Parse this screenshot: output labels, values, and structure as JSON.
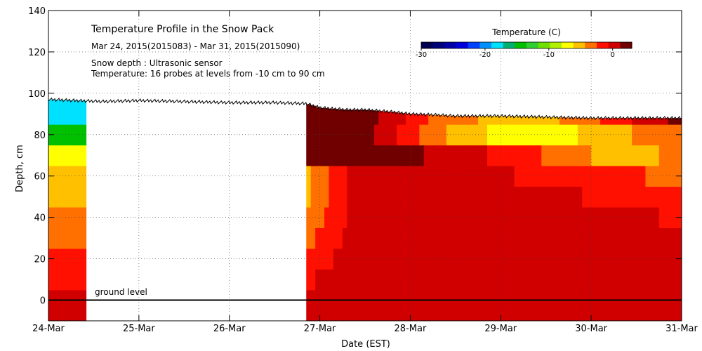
{
  "chart_data": {
    "type": "heatmap",
    "title": "Temperature Profile in the Snow Pack",
    "subtitle": "Mar 24, 2015(2015083) - Mar 31, 2015(2015090)",
    "notes": [
      "Snow depth : Ultrasonic sensor",
      "Temperature: 16 probes at levels from -10 cm to 90 cm"
    ],
    "xlabel": "Date (EST)",
    "ylabel": "Depth, cm",
    "xlim": [
      0,
      7
    ],
    "ylim": [
      -10,
      140
    ],
    "x_ticks": [
      {
        "value": 0,
        "label": "24-Mar"
      },
      {
        "value": 1,
        "label": "25-Mar"
      },
      {
        "value": 2,
        "label": "26-Mar"
      },
      {
        "value": 3,
        "label": "27-Mar"
      },
      {
        "value": 4,
        "label": "28-Mar"
      },
      {
        "value": 5,
        "label": "29-Mar"
      },
      {
        "value": 6,
        "label": "30-Mar"
      },
      {
        "value": 7,
        "label": "31-Mar"
      }
    ],
    "y_ticks": [
      {
        "value": -10,
        "label": ""
      },
      {
        "value": 0,
        "label": "0"
      },
      {
        "value": 20,
        "label": "20"
      },
      {
        "value": 40,
        "label": "40"
      },
      {
        "value": 60,
        "label": "60"
      },
      {
        "value": 80,
        "label": "80"
      },
      {
        "value": 100,
        "label": "100"
      },
      {
        "value": 120,
        "label": "120"
      },
      {
        "value": 140,
        "label": "140"
      }
    ],
    "grid": true,
    "ground_level": {
      "value": 0,
      "label": "ground level"
    },
    "colorbar": {
      "title": "Temperature (C)",
      "min": -30,
      "max": 3,
      "ticks": [
        {
          "value": -30,
          "label": "-30"
        },
        {
          "value": -20,
          "label": "-20"
        },
        {
          "value": -10,
          "label": "-10"
        },
        {
          "value": 0,
          "label": "0"
        }
      ],
      "colors": [
        "#000050",
        "#00007a",
        "#0000a8",
        "#0000dc",
        "#0040ff",
        "#0090ff",
        "#00e0ff",
        "#00b070",
        "#00c000",
        "#30d030",
        "#70e000",
        "#b0f000",
        "#ffff00",
        "#ffc000",
        "#ff7000",
        "#ff1000",
        "#d00000",
        "#700000"
      ]
    },
    "snow_depth": {
      "x": [
        0,
        0.3,
        0.6,
        1.0,
        1.5,
        2.0,
        2.5,
        2.85,
        3.0,
        3.3,
        3.5,
        3.8,
        4.0,
        4.3,
        4.5,
        5.0,
        5.5,
        6.0,
        6.5,
        7.0
      ],
      "y": [
        97,
        96.5,
        96,
        96.5,
        96,
        95.5,
        95.5,
        95,
        93,
        92,
        92,
        91,
        90,
        89.5,
        89,
        89,
        88.5,
        88,
        88,
        88
      ]
    },
    "missing_intervals": [
      [
        0.42,
        2.85
      ]
    ],
    "probe_temperature_layers": {
      "x": [
        0,
        0.42,
        2.85,
        3.5,
        4.3,
        5.3,
        6.2,
        7.0
      ],
      "levels_cm": [
        -10,
        0,
        10,
        20,
        30,
        40,
        50,
        60,
        70,
        80,
        90
      ],
      "temperature_c": [
        [
          1,
          1,
          1,
          1,
          1,
          1,
          1,
          1
        ],
        [
          0,
          0,
          1,
          1,
          1,
          1,
          1,
          1
        ],
        [
          -1,
          -1,
          -1,
          1,
          1,
          1,
          1,
          1
        ],
        [
          -2,
          -2,
          -2,
          1,
          1,
          1,
          1,
          1
        ],
        [
          -3,
          -3,
          -3,
          1,
          1,
          1,
          0,
          0
        ],
        [
          -4,
          -4,
          -4,
          1,
          1,
          1,
          0,
          -1
        ],
        [
          -5,
          -5,
          -5,
          1,
          1,
          0,
          -1,
          -2
        ],
        [
          -6,
          -6,
          -5,
          1,
          1,
          -1,
          -2,
          -3
        ],
        [
          -8,
          -8,
          2,
          2,
          1,
          -2,
          -5,
          -4
        ],
        [
          -14,
          -14,
          2,
          2,
          -4,
          -8,
          -5,
          -3
        ],
        [
          -18,
          -18,
          2,
          2,
          -3,
          -6,
          -2,
          2
        ]
      ]
    }
  }
}
